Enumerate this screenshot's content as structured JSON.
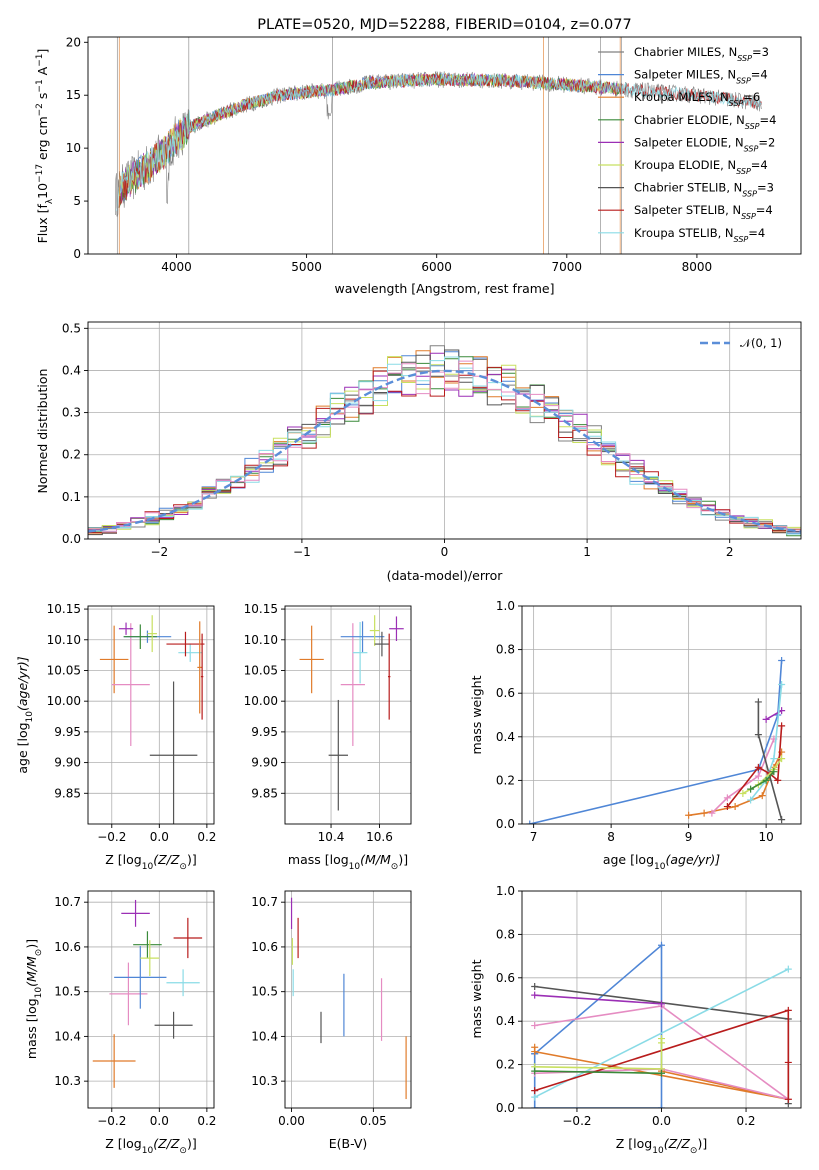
{
  "colors": {
    "c_miles": "#808080",
    "s_miles": "#4f86d6",
    "k_miles": "#e07b2a",
    "c_elodie": "#3a8a3a",
    "s_elodie": "#9b2fb5",
    "k_elodie": "#c8e060",
    "c_stelib": "#555555",
    "s_stelib": "#b81c1c",
    "k_stelib": "#8adbe6",
    "pink": "#e58cc2",
    "normal": "#5b8ed8"
  },
  "chart_data": [
    {
      "id": "spectrum",
      "type": "line",
      "title": "PLATE=0520, MJD=52288, FIBERID=0104, z=0.077",
      "xlabel": "wavelength [Angstrom, rest frame]",
      "ylabel_main": "Flux [f",
      "ylabel_sub": "λ",
      "ylabel_rest": "10",
      "ylabel_exp": "−17",
      "ylabel_units": " erg cm",
      "ylabel_exp2": "−2",
      "ylabel_s": " s",
      "ylabel_exp3": "−1",
      "ylabel_a": " A",
      "ylabel_exp4": "−1",
      "ylabel_end": "]",
      "xlim": [
        3320,
        8800
      ],
      "ylim": [
        0,
        20.5
      ],
      "xticks": [
        "4000",
        "5000",
        "6000",
        "7000",
        "8000"
      ],
      "xtick_values": [
        4000,
        5000,
        6000,
        7000,
        8000
      ],
      "yticks": [
        "0",
        "5",
        "10",
        "15",
        "20"
      ],
      "ytick_values": [
        0,
        5,
        10,
        15,
        20
      ],
      "continuum": [
        [
          3530,
          5.5
        ],
        [
          3600,
          6.5
        ],
        [
          3700,
          7.5
        ],
        [
          3800,
          8.5
        ],
        [
          3900,
          9.5
        ],
        [
          4000,
          11
        ],
        [
          4100,
          12
        ],
        [
          4300,
          13
        ],
        [
          4500,
          14
        ],
        [
          4800,
          15
        ],
        [
          5000,
          15.3
        ],
        [
          5200,
          15.5
        ],
        [
          5500,
          16.2
        ],
        [
          6000,
          16.5
        ],
        [
          6500,
          16.4
        ],
        [
          7000,
          16
        ],
        [
          7500,
          15.5
        ],
        [
          8000,
          15
        ],
        [
          8500,
          14.2
        ]
      ],
      "legend": [
        {
          "label": "Chabrier MILES, N",
          "sub": "SSP",
          "value": "=3",
          "color": "c_miles"
        },
        {
          "label": "Salpeter MILES, N",
          "sub": "SSP",
          "value": "=4",
          "color": "s_miles"
        },
        {
          "label": "Kroupa MILES, N",
          "sub": "SSP",
          "value": "=6",
          "color": "k_miles"
        },
        {
          "label": "Chabrier ELODIE, N",
          "sub": "SSP",
          "value": "=4",
          "color": "c_elodie"
        },
        {
          "label": "Salpeter ELODIE, N",
          "sub": "SSP",
          "value": "=2",
          "color": "s_elodie"
        },
        {
          "label": "Kroupa ELODIE, N",
          "sub": "SSP",
          "value": "=4",
          "color": "k_elodie"
        },
        {
          "label": "Chabrier STELIB, N",
          "sub": "SSP",
          "value": "=3",
          "color": "c_stelib"
        },
        {
          "label": "Salpeter STELIB, N",
          "sub": "SSP",
          "value": "=4",
          "color": "s_stelib"
        },
        {
          "label": "Kroupa STELIB, N",
          "sub": "SSP",
          "value": "=4",
          "color": "k_stelib"
        }
      ]
    },
    {
      "id": "residuals",
      "type": "histogram",
      "xlabel": "(data-model)/error",
      "ylabel": "Normed distribution",
      "xlim": [
        -2.5,
        2.5
      ],
      "ylim": [
        0,
        0.515
      ],
      "grid": true,
      "xticks": [
        "−2",
        "−1",
        "0",
        "1",
        "2"
      ],
      "xtick_values": [
        -2,
        -1,
        0,
        1,
        2
      ],
      "yticks": [
        "0.0",
        "0.1",
        "0.2",
        "0.3",
        "0.4",
        "0.5"
      ],
      "ytick_values": [
        0,
        0.1,
        0.2,
        0.3,
        0.4,
        0.5
      ],
      "legend_label": "𝒩(0, 1)",
      "legend_placement": "top-right"
    },
    {
      "id": "age_vs_z",
      "type": "errorbar",
      "xlabel": "Z [log",
      "xlabel_sub": "10",
      "xlabel_rest": "(Z/Z",
      "xlabel_sub2": "⊙",
      "xlabel_end": ")]",
      "ylabel": "age  [log",
      "ylabel_sub": "10",
      "ylabel_rest": "(age/yr)]",
      "xlim": [
        -0.3,
        0.23
      ],
      "ylim": [
        9.8,
        10.155
      ],
      "xticks": [
        "−0.2",
        "0.0",
        "0.2"
      ],
      "xtick_values": [
        -0.2,
        0.0,
        0.2
      ],
      "yticks": [
        "9.85",
        "9.90",
        "9.95",
        "10.00",
        "10.05",
        "10.10",
        "10.15"
      ],
      "ytick_values": [
        9.85,
        9.9,
        9.95,
        10.0,
        10.05,
        10.1,
        10.15
      ],
      "points": [
        {
          "x": -0.19,
          "y": 10.068,
          "xerr": 0.06,
          "yerr": 0.055,
          "color": "k_miles"
        },
        {
          "x": -0.12,
          "y": 10.027,
          "xerr": 0.08,
          "yerr": 0.1,
          "color": "pink"
        },
        {
          "x": -0.14,
          "y": 10.118,
          "xerr": 0.03,
          "yerr": 0.01,
          "color": "s_elodie"
        },
        {
          "x": -0.05,
          "y": 10.105,
          "xerr": 0.1,
          "yerr": 0.01,
          "color": "s_miles"
        },
        {
          "x": -0.08,
          "y": 10.105,
          "xerr": 0.07,
          "yerr": 0.02,
          "color": "c_elodie"
        },
        {
          "x": -0.03,
          "y": 10.11,
          "xerr": 0.02,
          "yerr": 0.03,
          "color": "k_elodie"
        },
        {
          "x": 0.06,
          "y": 9.912,
          "xerr": 0.1,
          "yerr": 0.12,
          "color": "c_stelib"
        },
        {
          "x": 0.13,
          "y": 10.079,
          "xerr": 0.05,
          "yerr": 0.015,
          "color": "k_stelib"
        },
        {
          "x": 0.11,
          "y": 10.093,
          "xerr": 0.08,
          "yerr": 0.02,
          "color": "s_stelib"
        },
        {
          "x": 0.17,
          "y": 10.055,
          "xerr": 0.01,
          "yerr": 0.075,
          "color": "k_miles"
        },
        {
          "x": 0.18,
          "y": 10.04,
          "xerr": 0.005,
          "yerr": 0.07,
          "color": "s_stelib"
        }
      ]
    },
    {
      "id": "age_vs_mass",
      "type": "errorbar",
      "xlabel": "mass [log",
      "xlabel_sub": "10",
      "xlabel_rest": "(M/M",
      "xlabel_sub2": "⊙",
      "xlabel_end": ")]",
      "xlim": [
        10.21,
        10.73
      ],
      "ylim": [
        9.8,
        10.155
      ],
      "xticks": [
        "10.4",
        "10.6"
      ],
      "xtick_values": [
        10.4,
        10.6
      ],
      "yticks": [
        "9.85",
        "9.90",
        "9.95",
        "10.00",
        "10.05",
        "10.10",
        "10.15"
      ],
      "ytick_values": [
        9.85,
        9.9,
        9.95,
        10.0,
        10.05,
        10.1,
        10.15
      ],
      "points": [
        {
          "x": 10.32,
          "y": 10.068,
          "xerr": 0.05,
          "yerr": 0.055,
          "color": "k_miles"
        },
        {
          "x": 10.43,
          "y": 9.912,
          "xerr": 0.04,
          "yerr": 0.09,
          "color": "c_stelib"
        },
        {
          "x": 10.49,
          "y": 10.027,
          "xerr": 0.05,
          "yerr": 0.1,
          "color": "pink"
        },
        {
          "x": 10.52,
          "y": 10.079,
          "xerr": 0.03,
          "yerr": 0.05,
          "color": "k_stelib"
        },
        {
          "x": 10.53,
          "y": 10.105,
          "xerr": 0.09,
          "yerr": 0.025,
          "color": "s_miles"
        },
        {
          "x": 10.58,
          "y": 10.115,
          "xerr": 0.02,
          "yerr": 0.025,
          "color": "k_elodie"
        },
        {
          "x": 10.61,
          "y": 10.093,
          "xerr": 0.03,
          "yerr": 0.02,
          "color": "c_stelib"
        },
        {
          "x": 10.64,
          "y": 10.04,
          "xerr": 0.005,
          "yerr": 0.07,
          "color": "s_stelib"
        },
        {
          "x": 10.67,
          "y": 10.118,
          "xerr": 0.03,
          "yerr": 0.02,
          "color": "s_elodie"
        }
      ]
    },
    {
      "id": "weight_vs_age",
      "type": "line",
      "xlabel": "age  [log",
      "xlabel_sub": "10",
      "xlabel_rest": "(age/yr)]",
      "ylabel": "mass weight",
      "xlim": [
        6.85,
        10.45
      ],
      "ylim": [
        0,
        1.0
      ],
      "grid": true,
      "xticks": [
        "7",
        "8",
        "9",
        "10"
      ],
      "xtick_values": [
        7,
        8,
        9,
        10
      ],
      "yticks": [
        "0.0",
        "0.2",
        "0.4",
        "0.6",
        "0.8",
        "1.0"
      ],
      "ytick_values": [
        0,
        0.2,
        0.4,
        0.6,
        0.8,
        1.0
      ],
      "series": [
        {
          "color": "s_miles",
          "x": [
            6.95,
            9.9,
            10.15,
            10.2
          ],
          "y": [
            0.0,
            0.25,
            0.5,
            0.75
          ]
        },
        {
          "color": "k_miles",
          "x": [
            9.0,
            9.2,
            9.6,
            9.95,
            10.1,
            10.2
          ],
          "y": [
            0.04,
            0.05,
            0.08,
            0.13,
            0.26,
            0.33
          ]
        },
        {
          "color": "pink",
          "x": [
            9.3,
            9.5,
            9.9,
            10.1
          ],
          "y": [
            0.05,
            0.12,
            0.22,
            0.39
          ]
        },
        {
          "color": "c_stelib",
          "x": [
            9.9,
            9.9,
            10.2
          ],
          "y": [
            0.56,
            0.41,
            0.02
          ]
        },
        {
          "color": "s_elodie",
          "x": [
            10.0,
            10.2
          ],
          "y": [
            0.48,
            0.52
          ]
        },
        {
          "color": "k_stelib",
          "x": [
            9.8,
            10.0,
            10.1,
            10.2
          ],
          "y": [
            0.11,
            0.2,
            0.3,
            0.64
          ]
        },
        {
          "color": "s_stelib",
          "x": [
            9.5,
            9.9,
            10.05,
            10.15,
            10.2
          ],
          "y": [
            0.08,
            0.26,
            0.23,
            0.2,
            0.45
          ]
        },
        {
          "color": "k_elodie",
          "x": [
            9.7,
            9.9,
            10.1,
            10.2
          ],
          "y": [
            0.14,
            0.18,
            0.25,
            0.3
          ]
        },
        {
          "color": "c_elodie",
          "x": [
            9.8,
            10.0,
            10.1
          ],
          "y": [
            0.16,
            0.2,
            0.24
          ]
        }
      ]
    },
    {
      "id": "mass_vs_z",
      "type": "errorbar",
      "xlabel": "Z [log",
      "xlabel_sub": "10",
      "xlabel_rest": "(Z/Z",
      "xlabel_sub2": "⊙",
      "xlabel_end": ")]",
      "ylabel": "mass [log",
      "ylabel_sub": "10",
      "ylabel_rest": "(M/M",
      "ylabel_sub2": "⊙",
      "ylabel_end": ")]",
      "xlim": [
        -0.3,
        0.23
      ],
      "ylim": [
        10.24,
        10.725
      ],
      "xticks": [
        "−0.2",
        "0.0",
        "0.2"
      ],
      "xtick_values": [
        -0.2,
        0.0,
        0.2
      ],
      "yticks": [
        "10.3",
        "10.4",
        "10.5",
        "10.6",
        "10.7"
      ],
      "ytick_values": [
        10.3,
        10.4,
        10.5,
        10.6,
        10.7
      ],
      "points": [
        {
          "x": -0.19,
          "y": 10.345,
          "xerr": 0.09,
          "yerr": 0.06,
          "color": "k_miles"
        },
        {
          "x": -0.13,
          "y": 10.495,
          "xerr": 0.08,
          "yerr": 0.07,
          "color": "pink"
        },
        {
          "x": -0.1,
          "y": 10.675,
          "xerr": 0.06,
          "yerr": 0.03,
          "color": "s_elodie"
        },
        {
          "x": -0.08,
          "y": 10.532,
          "xerr": 0.11,
          "yerr": 0.07,
          "color": "s_miles"
        },
        {
          "x": -0.05,
          "y": 10.605,
          "xerr": 0.06,
          "yerr": 0.03,
          "color": "c_elodie"
        },
        {
          "x": -0.04,
          "y": 10.575,
          "xerr": 0.04,
          "yerr": 0.04,
          "color": "k_elodie"
        },
        {
          "x": 0.06,
          "y": 10.425,
          "xerr": 0.08,
          "yerr": 0.03,
          "color": "c_stelib"
        },
        {
          "x": 0.1,
          "y": 10.52,
          "xerr": 0.07,
          "yerr": 0.03,
          "color": "k_stelib"
        },
        {
          "x": 0.12,
          "y": 10.62,
          "xerr": 0.06,
          "yerr": 0.045,
          "color": "s_stelib"
        }
      ]
    },
    {
      "id": "mass_vs_ebv",
      "type": "errorbar",
      "xlabel": "E(B-V)",
      "xlim": [
        -0.004,
        0.073
      ],
      "ylim": [
        10.24,
        10.725
      ],
      "xticks": [
        "0.00",
        "0.05"
      ],
      "xtick_values": [
        0.0,
        0.05
      ],
      "yticks": [
        "10.3",
        "10.4",
        "10.5",
        "10.6",
        "10.7"
      ],
      "ytick_values": [
        10.3,
        10.4,
        10.5,
        10.6,
        10.7
      ],
      "points": [
        {
          "x": 0.0,
          "y": 10.675,
          "xerr": 0,
          "yerr": 0.035,
          "color": "s_elodie"
        },
        {
          "x": 0.0005,
          "y": 10.59,
          "xerr": 0,
          "yerr": 0.03,
          "color": "k_elodie"
        },
        {
          "x": 0.001,
          "y": 10.52,
          "xerr": 0,
          "yerr": 0.03,
          "color": "k_stelib"
        },
        {
          "x": 0.004,
          "y": 10.62,
          "xerr": 0,
          "yerr": 0.045,
          "color": "s_stelib"
        },
        {
          "x": 0.018,
          "y": 10.42,
          "xerr": 0,
          "yerr": 0.035,
          "color": "c_stelib"
        },
        {
          "x": 0.032,
          "y": 10.47,
          "xerr": 0,
          "yerr": 0.07,
          "color": "s_miles"
        },
        {
          "x": 0.055,
          "y": 10.46,
          "xerr": 0,
          "yerr": 0.07,
          "color": "pink"
        },
        {
          "x": 0.07,
          "y": 10.33,
          "xerr": 0,
          "yerr": 0.07,
          "color": "k_miles"
        }
      ]
    },
    {
      "id": "weight_vs_z",
      "type": "line",
      "xlabel": "Z [log",
      "xlabel_sub": "10",
      "xlabel_rest": "(Z/Z",
      "xlabel_sub2": "⊙",
      "xlabel_end": ")]",
      "ylabel": "mass weight",
      "xlim": [
        -0.33,
        0.33
      ],
      "ylim": [
        0,
        1.0
      ],
      "grid": true,
      "xticks": [
        "−0.2",
        "0.0",
        "0.2"
      ],
      "xtick_values": [
        -0.2,
        0.0,
        0.2
      ],
      "yticks": [
        "0.0",
        "0.2",
        "0.4",
        "0.6",
        "0.8",
        "1.0"
      ],
      "ytick_values": [
        0,
        0.2,
        0.4,
        0.6,
        0.8,
        1.0
      ],
      "series": [
        {
          "color": "s_miles",
          "x": [
            -0.3,
            0.0,
            0.0,
            -0.3,
            -0.3
          ],
          "y": [
            0.25,
            0.75,
            0.0,
            0.0,
            0.25
          ]
        },
        {
          "color": "k_miles",
          "x": [
            -0.3,
            -0.3,
            0.3,
            0.0,
            0.0
          ],
          "y": [
            0.28,
            0.26,
            0.04,
            0.17,
            0.18
          ]
        },
        {
          "color": "pink",
          "x": [
            -0.3,
            0.0,
            0.3,
            0.0,
            -0.3
          ],
          "y": [
            0.38,
            0.47,
            0.04,
            0.18,
            0.16
          ]
        },
        {
          "color": "c_stelib",
          "x": [
            -0.3,
            0.3,
            0.3
          ],
          "y": [
            0.56,
            0.41,
            0.02
          ]
        },
        {
          "color": "s_elodie",
          "x": [
            -0.3,
            0.0
          ],
          "y": [
            0.52,
            0.48
          ]
        },
        {
          "color": "k_stelib",
          "x": [
            -0.3,
            0.3
          ],
          "y": [
            0.05,
            0.64
          ]
        },
        {
          "color": "s_stelib",
          "x": [
            -0.3,
            0.3,
            0.3,
            0.3
          ],
          "y": [
            0.08,
            0.45,
            0.21,
            0.04
          ]
        },
        {
          "color": "k_elodie",
          "x": [
            -0.3,
            0.0,
            0.0,
            0.0
          ],
          "y": [
            0.19,
            0.18,
            0.3,
            0.32
          ]
        },
        {
          "color": "c_elodie",
          "x": [
            -0.3,
            0.0
          ],
          "y": [
            0.17,
            0.16
          ]
        }
      ]
    }
  ]
}
